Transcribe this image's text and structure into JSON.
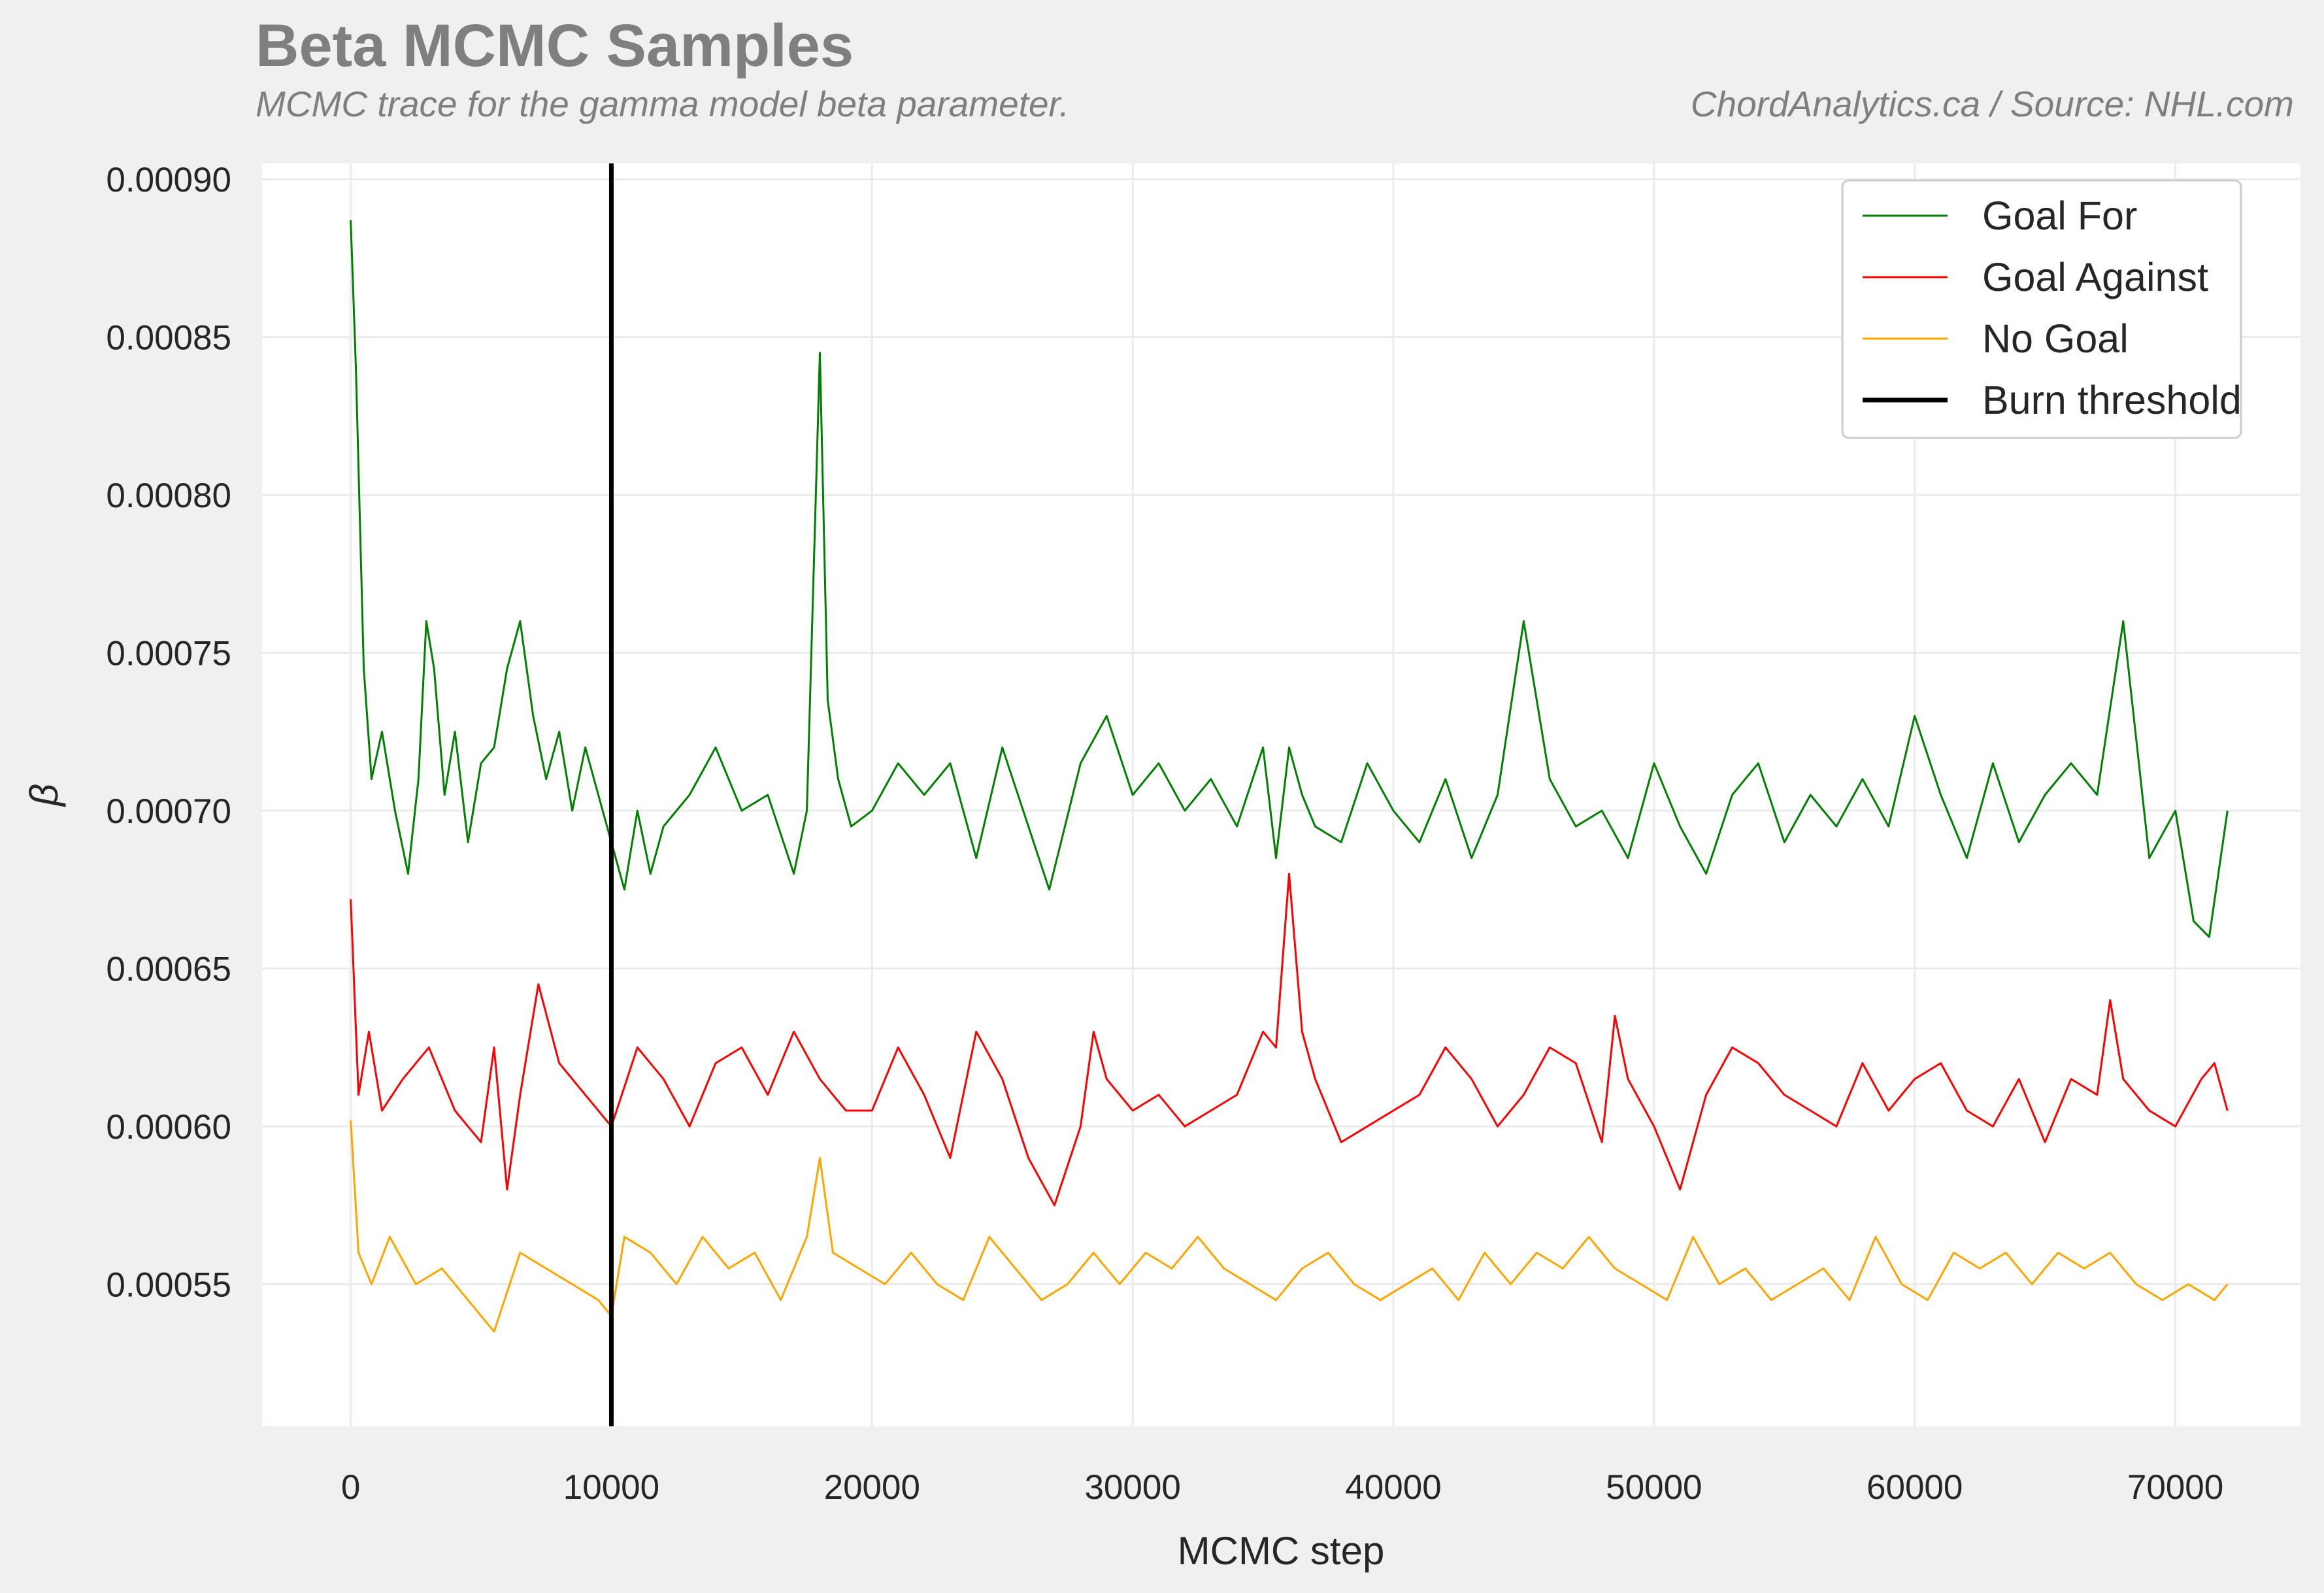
{
  "header": {
    "title": "Beta MCMC Samples",
    "subtitle": "MCMC trace for the gamma model beta parameter.",
    "credit": "ChordAnalytics.ca  /  Source: NHL.com"
  },
  "colors": {
    "page_background": "#f0f0f0",
    "plot_background": "#ffffff",
    "grid": "#ebebeb",
    "goal_for": "#008000",
    "goal_against": "#ff0000",
    "no_goal": "#ffa500",
    "burn_threshold": "#000000"
  },
  "chart_data": {
    "type": "line",
    "title": "Beta MCMC Samples",
    "subtitle": "MCMC trace for the gamma model beta parameter.",
    "xlabel": "MCMC step",
    "ylabel": "β",
    "xlim": [
      -3400,
      74800
    ],
    "ylim": [
      0.000505,
      0.000905
    ],
    "x_ticks": [
      0,
      10000,
      20000,
      30000,
      40000,
      50000,
      60000,
      70000
    ],
    "x_tick_labels": [
      "0",
      "10000",
      "20000",
      "30000",
      "40000",
      "50000",
      "60000",
      "70000"
    ],
    "y_ticks": [
      0.00055,
      0.0006,
      0.00065,
      0.0007,
      0.00075,
      0.0008,
      0.00085,
      0.0009
    ],
    "y_tick_labels": [
      "0.00055",
      "0.00060",
      "0.00065",
      "0.00070",
      "0.00075",
      "0.00080",
      "0.00085",
      "0.00090"
    ],
    "grid": true,
    "legend_position": "top-right",
    "burn_threshold": {
      "name": "Burn threshold",
      "x": 10000
    },
    "series": [
      {
        "name": "Goal For",
        "color": "#008000",
        "x": [
          0,
          200,
          500,
          800,
          1200,
          1700,
          2200,
          2600,
          2900,
          3200,
          3600,
          4000,
          4500,
          5000,
          5500,
          6000,
          6500,
          7000,
          7500,
          8000,
          8500,
          9000,
          9500,
          10000,
          10500,
          11000,
          11500,
          12000,
          13000,
          14000,
          15000,
          16000,
          17000,
          17500,
          18000,
          18300,
          18700,
          19200,
          20000,
          21000,
          22000,
          23000,
          24000,
          25000,
          26000,
          26800,
          28000,
          29000,
          30000,
          31000,
          32000,
          33000,
          34000,
          35000,
          35500,
          36000,
          36500,
          37000,
          38000,
          39000,
          40000,
          41000,
          42000,
          43000,
          44000,
          45000,
          46000,
          47000,
          48000,
          49000,
          50000,
          51000,
          52000,
          53000,
          54000,
          55000,
          56000,
          57000,
          58000,
          59000,
          60000,
          61000,
          62000,
          63000,
          64000,
          65000,
          66000,
          67000,
          68000,
          69000,
          70000,
          70700,
          71300,
          72000
        ],
        "values": [
          0.000887,
          0.00084,
          0.000745,
          0.00071,
          0.000725,
          0.0007,
          0.00068,
          0.00071,
          0.00076,
          0.000745,
          0.000705,
          0.000725,
          0.00069,
          0.000715,
          0.00072,
          0.000745,
          0.00076,
          0.00073,
          0.00071,
          0.000725,
          0.0007,
          0.00072,
          0.000705,
          0.00069,
          0.000675,
          0.0007,
          0.00068,
          0.000695,
          0.000705,
          0.00072,
          0.0007,
          0.000705,
          0.00068,
          0.0007,
          0.000845,
          0.000735,
          0.00071,
          0.000695,
          0.0007,
          0.000715,
          0.000705,
          0.000715,
          0.000685,
          0.00072,
          0.000695,
          0.000675,
          0.000715,
          0.00073,
          0.000705,
          0.000715,
          0.0007,
          0.00071,
          0.000695,
          0.00072,
          0.000685,
          0.00072,
          0.000705,
          0.000695,
          0.00069,
          0.000715,
          0.0007,
          0.00069,
          0.00071,
          0.000685,
          0.000705,
          0.00076,
          0.00071,
          0.000695,
          0.0007,
          0.000685,
          0.000715,
          0.000695,
          0.00068,
          0.000705,
          0.000715,
          0.00069,
          0.000705,
          0.000695,
          0.00071,
          0.000695,
          0.00073,
          0.000705,
          0.000685,
          0.000715,
          0.00069,
          0.000705,
          0.000715,
          0.000705,
          0.00076,
          0.000685,
          0.0007,
          0.000665,
          0.00066,
          0.0007
        ]
      },
      {
        "name": "Goal Against",
        "color": "#ff0000",
        "x": [
          0,
          300,
          700,
          1200,
          2000,
          3000,
          4000,
          5000,
          5500,
          6000,
          6500,
          7200,
          8000,
          9000,
          10000,
          11000,
          12000,
          13000,
          14000,
          15000,
          16000,
          17000,
          18000,
          19000,
          20000,
          21000,
          22000,
          23000,
          24000,
          25000,
          26000,
          27000,
          28000,
          28500,
          29000,
          30000,
          31000,
          32000,
          33000,
          34000,
          35000,
          35500,
          36000,
          36500,
          37000,
          38000,
          39000,
          40000,
          41000,
          42000,
          43000,
          44000,
          45000,
          46000,
          47000,
          48000,
          48500,
          49000,
          50000,
          51000,
          52000,
          53000,
          54000,
          55000,
          56000,
          57000,
          58000,
          59000,
          60000,
          61000,
          62000,
          63000,
          64000,
          65000,
          66000,
          67000,
          67500,
          68000,
          69000,
          70000,
          71000,
          71500,
          72000
        ],
        "values": [
          0.000672,
          0.00061,
          0.00063,
          0.000605,
          0.000615,
          0.000625,
          0.000605,
          0.000595,
          0.000625,
          0.00058,
          0.00061,
          0.000645,
          0.00062,
          0.00061,
          0.0006,
          0.000625,
          0.000615,
          0.0006,
          0.00062,
          0.000625,
          0.00061,
          0.00063,
          0.000615,
          0.000605,
          0.000605,
          0.000625,
          0.00061,
          0.00059,
          0.00063,
          0.000615,
          0.00059,
          0.000575,
          0.0006,
          0.00063,
          0.000615,
          0.000605,
          0.00061,
          0.0006,
          0.000605,
          0.00061,
          0.00063,
          0.000625,
          0.00068,
          0.00063,
          0.000615,
          0.000595,
          0.0006,
          0.000605,
          0.00061,
          0.000625,
          0.000615,
          0.0006,
          0.00061,
          0.000625,
          0.00062,
          0.000595,
          0.000635,
          0.000615,
          0.0006,
          0.00058,
          0.00061,
          0.000625,
          0.00062,
          0.00061,
          0.000605,
          0.0006,
          0.00062,
          0.000605,
          0.000615,
          0.00062,
          0.000605,
          0.0006,
          0.000615,
          0.000595,
          0.000615,
          0.00061,
          0.00064,
          0.000615,
          0.000605,
          0.0006,
          0.000615,
          0.00062,
          0.000605
        ]
      },
      {
        "name": "No Goal",
        "color": "#ffa500",
        "x": [
          0,
          300,
          800,
          1500,
          2500,
          3500,
          4500,
          5500,
          6500,
          7500,
          8500,
          9500,
          10000,
          10500,
          11500,
          12500,
          13500,
          14500,
          15500,
          16500,
          17500,
          18000,
          18500,
          19500,
          20500,
          21500,
          22500,
          23500,
          24500,
          25500,
          26500,
          27500,
          28500,
          29500,
          30500,
          31500,
          32500,
          33500,
          34500,
          35500,
          36500,
          37500,
          38500,
          39500,
          40500,
          41500,
          42500,
          43500,
          44500,
          45500,
          46500,
          47500,
          48500,
          49500,
          50500,
          51500,
          52500,
          53500,
          54500,
          55500,
          56500,
          57500,
          58500,
          59500,
          60500,
          61500,
          62500,
          63500,
          64500,
          65500,
          66500,
          67500,
          68500,
          69500,
          70500,
          71500,
          72000
        ],
        "values": [
          0.000602,
          0.00056,
          0.00055,
          0.000565,
          0.00055,
          0.000555,
          0.000545,
          0.000535,
          0.00056,
          0.000555,
          0.00055,
          0.000545,
          0.00054,
          0.000565,
          0.00056,
          0.00055,
          0.000565,
          0.000555,
          0.00056,
          0.000545,
          0.000565,
          0.00059,
          0.00056,
          0.000555,
          0.00055,
          0.00056,
          0.00055,
          0.000545,
          0.000565,
          0.000555,
          0.000545,
          0.00055,
          0.00056,
          0.00055,
          0.00056,
          0.000555,
          0.000565,
          0.000555,
          0.00055,
          0.000545,
          0.000555,
          0.00056,
          0.00055,
          0.000545,
          0.00055,
          0.000555,
          0.000545,
          0.00056,
          0.00055,
          0.00056,
          0.000555,
          0.000565,
          0.000555,
          0.00055,
          0.000545,
          0.000565,
          0.00055,
          0.000555,
          0.000545,
          0.00055,
          0.000555,
          0.000545,
          0.000565,
          0.00055,
          0.000545,
          0.00056,
          0.000555,
          0.00056,
          0.00055,
          0.00056,
          0.000555,
          0.00056,
          0.00055,
          0.000545,
          0.00055,
          0.000545,
          0.00055
        ]
      }
    ]
  }
}
